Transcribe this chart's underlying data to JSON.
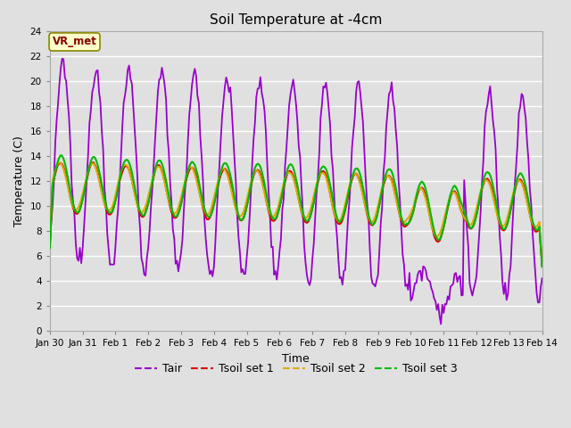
{
  "title": "Soil Temperature at -4cm",
  "xlabel": "Time",
  "ylabel": "Temperature (C)",
  "ylim": [
    0,
    24
  ],
  "yticks": [
    0,
    2,
    4,
    6,
    8,
    10,
    12,
    14,
    16,
    18,
    20,
    22,
    24
  ],
  "xtick_labels": [
    "Jan 30",
    "Jan 31",
    "Feb 1",
    "Feb 2",
    "Feb 3",
    "Feb 4",
    "Feb 5",
    "Feb 6",
    "Feb 7",
    "Feb 8",
    "Feb 9",
    "Feb 10",
    "Feb 11",
    "Feb 12",
    "Feb 13",
    "Feb 14"
  ],
  "color_tair": "#9900cc",
  "color_tsoil1": "#dd0000",
  "color_tsoil2": "#ddaa00",
  "color_tsoil3": "#00bb00",
  "legend_label_tair": "Tair",
  "legend_label_ts1": "Tsoil set 1",
  "legend_label_ts2": "Tsoil set 2",
  "legend_label_ts3": "Tsoil set 3",
  "station_label": "VR_met",
  "bg_color": "#e0e0e0",
  "plot_bg_color": "#e0e0e0",
  "grid_color": "#ffffff",
  "n_points": 361
}
